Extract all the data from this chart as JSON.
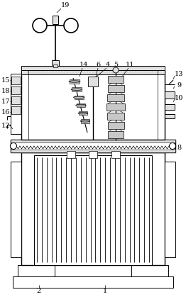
{
  "bg_color": "#ffffff",
  "lc": "#000000",
  "gray1": "#c8c8c8",
  "gray2": "#e0e0e0",
  "gray3": "#a0a0a0",
  "figsize": [
    2.62,
    4.19
  ],
  "dpi": 100
}
